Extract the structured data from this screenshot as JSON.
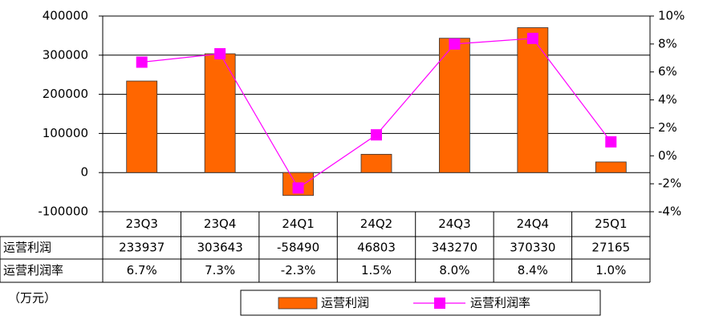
{
  "chart_data": {
    "type": "bar-line",
    "categories": [
      "23Q3",
      "23Q4",
      "24Q1",
      "24Q2",
      "24Q3",
      "24Q4",
      "25Q1"
    ],
    "series": [
      {
        "name": "运营利润",
        "type": "bar",
        "color": "#ff6600",
        "values": [
          233937,
          303643,
          -58490,
          46803,
          343270,
          370330,
          27165
        ]
      },
      {
        "name": "运营利润率",
        "type": "line",
        "axis": "y2",
        "color": "#ff00ff",
        "values": [
          6.7,
          7.3,
          -2.3,
          1.5,
          8.0,
          8.4,
          1.0
        ],
        "value_labels": [
          "6.7%",
          "7.3%",
          "-2.3%",
          "1.5%",
          "8.0%",
          "8.4%",
          "1.0%"
        ]
      }
    ],
    "ylim": [
      -100000,
      400000
    ],
    "yticks": [
      -100000,
      0,
      100000,
      200000,
      300000,
      400000
    ],
    "y2lim": [
      -4,
      10
    ],
    "y2ticks": [
      {
        "value": -4,
        "label": "-4%"
      },
      {
        "value": -2,
        "label": "-2%"
      },
      {
        "value": 0,
        "label": "0%"
      },
      {
        "value": 2,
        "label": "2%"
      },
      {
        "value": 4,
        "label": "4%"
      },
      {
        "value": 6,
        "label": "6%"
      },
      {
        "value": 8,
        "label": "8%"
      },
      {
        "value": 10,
        "label": "10%"
      }
    ],
    "grid": true,
    "unit_note": "（万元）"
  }
}
